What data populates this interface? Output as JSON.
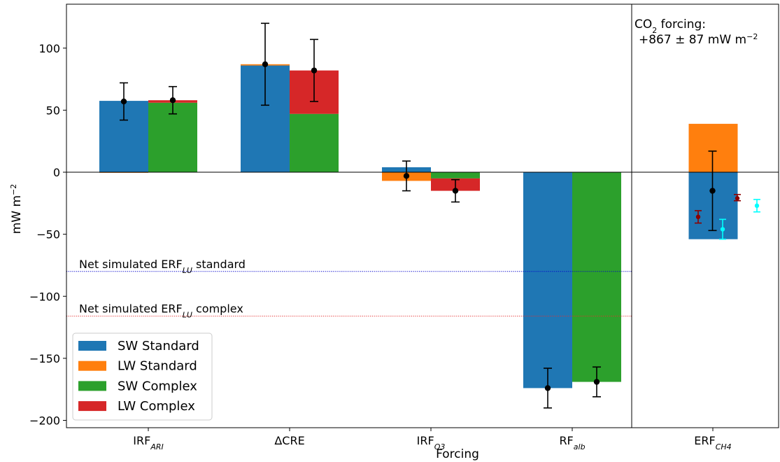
{
  "chart_data": {
    "type": "bar",
    "xlabel": "Forcing",
    "ylabel": "mW m",
    "ylabel_sup": "−2",
    "ylim": [
      -207,
      135
    ],
    "yticks": [
      100,
      50,
      0,
      -50,
      -100,
      -150,
      -200
    ],
    "ytick_labels": [
      "100",
      "50",
      "0",
      "−50",
      "−100",
      "−150",
      "−200"
    ],
    "grid": false,
    "legend_position": "lower-left",
    "colors": {
      "sw_standard": "#1f77b4",
      "lw_standard": "#ff7f0e",
      "sw_complex": "#2ca02c",
      "lw_complex": "#d62728",
      "dot": "#000000",
      "methane_a": "#8b0000",
      "methane_b": "#00ffff",
      "line_standard": "#0000cc",
      "line_complex": "#e53030"
    },
    "legend": [
      {
        "label": "SW Standard",
        "color_key": "sw_standard"
      },
      {
        "label": "LW Standard",
        "color_key": "lw_standard"
      },
      {
        "label": "SW Complex",
        "color_key": "sw_complex"
      },
      {
        "label": "LW Complex",
        "color_key": "lw_complex"
      }
    ],
    "categories": [
      {
        "base": "IRF",
        "sub": "ARI"
      },
      {
        "base": "ΔCRE",
        "sub": ""
      },
      {
        "base": "IRF",
        "sub": "O3"
      },
      {
        "base": "RF",
        "sub": "alb"
      },
      {
        "base": "ERF",
        "sub": "CH4"
      }
    ],
    "series": [
      {
        "name": "SW Standard",
        "group": "standard",
        "values": [
          57.5,
          86,
          4,
          -174,
          -54
        ]
      },
      {
        "name": "LW Standard",
        "group": "standard",
        "values": [
          -0.5,
          1,
          -7,
          0,
          39
        ]
      },
      {
        "name": "SW Complex",
        "group": "complex",
        "values": [
          56,
          47,
          -5,
          -169,
          null
        ]
      },
      {
        "name": "LW Complex",
        "group": "complex",
        "values": [
          2,
          35,
          -10,
          0,
          null
        ]
      }
    ],
    "net_points": {
      "standard": [
        {
          "y": 57,
          "lo": 42,
          "hi": 72
        },
        {
          "y": 87,
          "lo": 54,
          "hi": 120
        },
        {
          "y": -3,
          "lo": -15,
          "hi": 9
        },
        {
          "y": -174,
          "lo": -190,
          "hi": -158
        },
        {
          "y": -15,
          "lo": -47,
          "hi": 17
        }
      ],
      "complex": [
        {
          "y": 58,
          "lo": 47,
          "hi": 69
        },
        {
          "y": 82,
          "lo": 57,
          "hi": 107
        },
        {
          "y": -15,
          "lo": -24,
          "hi": -6
        },
        {
          "y": -169,
          "lo": -181,
          "hi": -157
        },
        null
      ]
    },
    "extra_points": [
      {
        "color_key": "methane_a",
        "category": 4,
        "offset": -0.3,
        "y": -36,
        "lo": -41,
        "hi": -31
      },
      {
        "color_key": "methane_b",
        "category": 4,
        "offset": 0.2,
        "y": -46,
        "lo": -54,
        "hi": -38
      },
      {
        "color_key": "methane_a",
        "category": 4,
        "offset": 0.5,
        "y": -21,
        "lo": -23,
        "hi": -18
      },
      {
        "color_key": "methane_b",
        "category": 4,
        "offset": 0.9,
        "y": -27,
        "lo": -32,
        "hi": -22
      }
    ],
    "reference_lines": [
      {
        "y": -80,
        "color_key": "line_standard",
        "text_pre": "Net simulated ERF",
        "text_sub": "LU",
        "text_post": " standard"
      },
      {
        "y": -116,
        "color_key": "line_complex",
        "text_pre": "Net simulated ERF",
        "text_sub": "LU",
        "text_post": " complex"
      }
    ],
    "co2_note": {
      "line1_pre": "CO",
      "line1_sub": "2",
      "line1_post": " forcing:",
      "line2": "+867 ± 87 mW m",
      "line2_sup": "−2"
    }
  }
}
